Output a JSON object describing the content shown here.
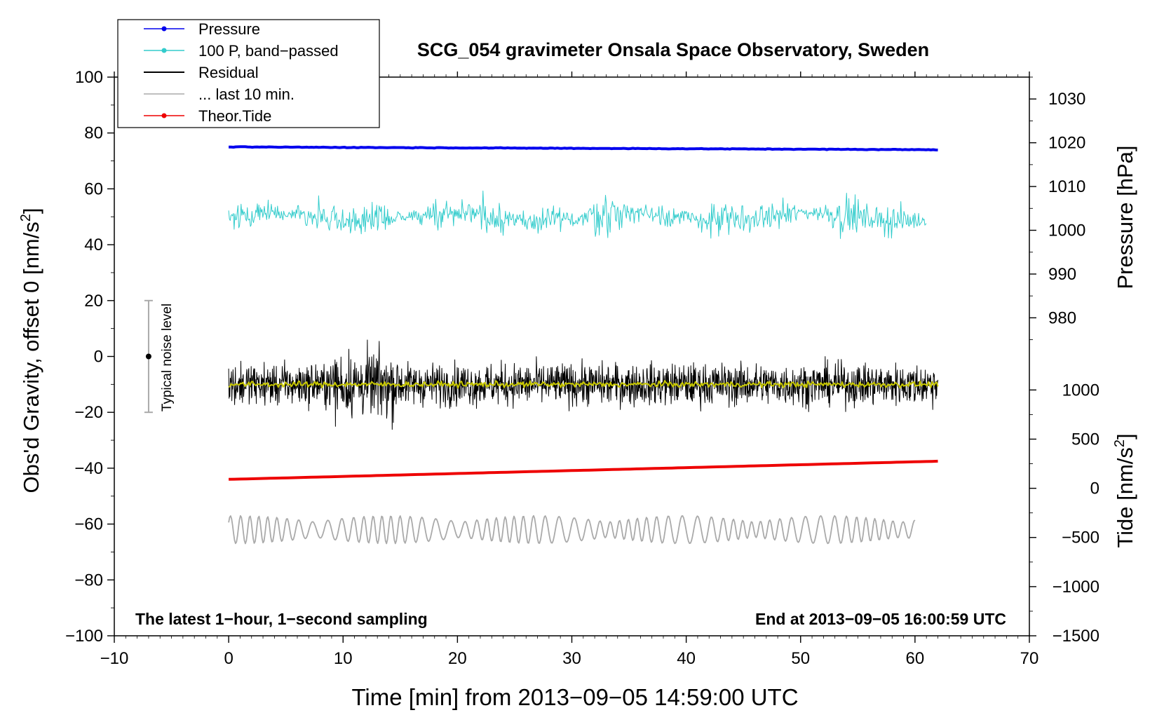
{
  "chart_data": {
    "type": "line",
    "title": "SCG_054 gravimeter Onsala Space Observatory, Sweden",
    "xlabel": "Time [min] from 2013−09−05 14:59:00 UTC",
    "ylabel_main": "Obs'd Gravity, offset 0 [nm/s",
    "ylabel_main_sup": "2",
    "ylabel_main_end": "]",
    "ylabel_pressure": "Pressure [hPa]",
    "ylabel_tide": "Tide [nm/s",
    "ylabel_tide_sup": "2",
    "ylabel_tide_end": "]",
    "xlim": [
      -10,
      70
    ],
    "ylim": [
      -100,
      100
    ],
    "pressure_axis_range": [
      975,
      1035
    ],
    "tide_axis_range": [
      -1500,
      1000
    ],
    "x_ticks": [
      -10,
      0,
      10,
      20,
      30,
      40,
      50,
      60,
      70
    ],
    "x_tick_labels": [
      "−10",
      "0",
      "10",
      "20",
      "30",
      "40",
      "50",
      "60",
      "70"
    ],
    "y_ticks": [
      -100,
      -80,
      -60,
      -40,
      -20,
      0,
      20,
      40,
      60,
      80,
      100
    ],
    "y_tick_labels": [
      "−100",
      "−80",
      "−60",
      "−40",
      "−20",
      "0",
      "20",
      "40",
      "60",
      "80",
      "100"
    ],
    "pressure_ticks": [
      980,
      990,
      1000,
      1010,
      1020,
      1030
    ],
    "pressure_tick_labels": [
      "980",
      "990",
      "1000",
      "1010",
      "1020",
      "1030"
    ],
    "tide_ticks": [
      -1500,
      -1000,
      -500,
      0,
      500,
      1000
    ],
    "tide_tick_labels": [
      "−1500",
      "−1000",
      "−500",
      "0",
      "500",
      "1000"
    ],
    "legend_placement": "top-left",
    "legend": [
      {
        "name": "Pressure",
        "color": "#0000ee",
        "marker": true
      },
      {
        "name": "100 P, band−passed",
        "color": "#33cccc",
        "marker": true
      },
      {
        "name": "Residual",
        "color": "#000000",
        "marker": false
      },
      {
        "name": "... last 10 min.",
        "color": "#aaaaaa",
        "marker": false
      },
      {
        "name": "Theor.Tide",
        "color": "#ee0000",
        "marker": true
      }
    ],
    "series": [
      {
        "key": "pressure",
        "color": "#0000ee",
        "x_range": [
          0,
          62
        ],
        "y_start": 75,
        "y_end": 74,
        "unit": "gravity-axis"
      },
      {
        "key": "bandpassed",
        "color": "#33cccc",
        "x_range": [
          0,
          61
        ],
        "center": 50,
        "amplitude": 6
      },
      {
        "key": "residual",
        "color": "#000000",
        "x_range": [
          0,
          62
        ],
        "center": -10,
        "amplitude": 7
      },
      {
        "key": "residual_smooth",
        "color": "#c8c800",
        "x_range": [
          0,
          62
        ],
        "center": -10,
        "amplitude": 1.2
      },
      {
        "key": "tide",
        "color": "#ee0000",
        "x_range": [
          0,
          62
        ],
        "y_start": -44,
        "y_end": -37.5
      },
      {
        "key": "last10",
        "color": "#aaaaaa",
        "x_range": [
          0,
          60
        ],
        "center": -62,
        "amplitude": 5
      }
    ],
    "noise_bar": {
      "x": -7,
      "y_center": 0,
      "y_low": -20,
      "y_high": 20,
      "label": "Typical noise level"
    },
    "annotation_left": "The latest 1−hour, 1−second sampling",
    "annotation_right": "End at 2013−09−05 16:00:59 UTC"
  }
}
